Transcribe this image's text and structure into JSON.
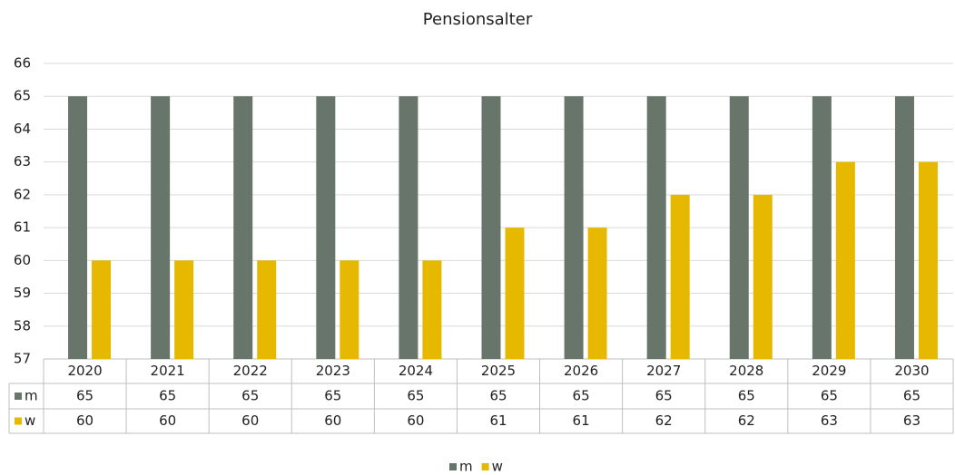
{
  "chart_data": {
    "type": "bar",
    "title": "Pensionsalter",
    "categories": [
      "2020",
      "2021",
      "2022",
      "2023",
      "2024",
      "2025",
      "2026",
      "2027",
      "2028",
      "2029",
      "2030"
    ],
    "series": [
      {
        "name": "m",
        "color": "#68756b",
        "values": [
          65,
          65,
          65,
          65,
          65,
          65,
          65,
          65,
          65,
          65,
          65
        ]
      },
      {
        "name": "w",
        "color": "#e6b800",
        "values": [
          60,
          60,
          60,
          60,
          60,
          61,
          61,
          62,
          62,
          63,
          63
        ]
      }
    ],
    "ylim": [
      57,
      66
    ],
    "yticks": [
      57,
      58,
      59,
      60,
      61,
      62,
      63,
      64,
      65,
      66
    ],
    "grid": true,
    "legend": "bottom"
  }
}
